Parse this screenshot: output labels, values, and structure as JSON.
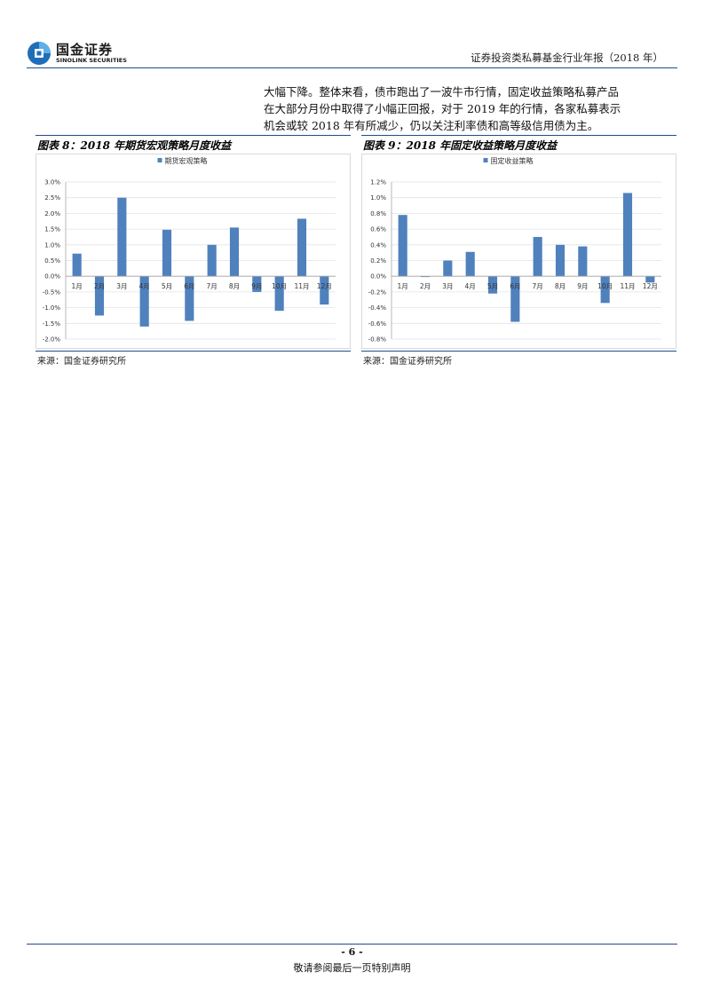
{
  "header": {
    "logo_cn": "国金证券",
    "logo_en": "SINOLINK SECURITIES",
    "report_title": "证券投资类私募基金行业年报（2018 年）"
  },
  "intro": {
    "lines": [
      "大幅下降。整体来看，债市跑出了一波牛市行情，固定收益策略私募产品",
      "在大部分月份中取得了小幅正回报，对于 2019 年的行情，各家私募表示",
      "机会或较 2018 年有所减少，仍以关注利率债和高等级信用债为主。"
    ]
  },
  "figures": [
    {
      "title": "图表 8：2018 年期货宏观策略月度收益",
      "source": "来源：国金证券研究所"
    },
    {
      "title": "图表 9：2018 年固定收益策略月度收益",
      "source": "来源：国金证券研究所"
    }
  ],
  "colors": {
    "bar": "#4f81bd",
    "rule": "#1f4e8c"
  },
  "chart_data": [
    {
      "type": "bar",
      "title": "",
      "legend": "期货宏观策略",
      "categories": [
        "1月",
        "2月",
        "3月",
        "4月",
        "5月",
        "6月",
        "7月",
        "8月",
        "9月",
        "10月",
        "11月",
        "12月"
      ],
      "values": [
        0.72,
        -1.25,
        2.5,
        -1.6,
        1.48,
        -1.42,
        1.0,
        1.55,
        -0.5,
        -1.1,
        1.83,
        -0.9
      ],
      "ylim": [
        -2.0,
        3.0
      ],
      "yticks": [
        3.0,
        2.5,
        2.0,
        1.5,
        1.0,
        0.5,
        0.0,
        -0.5,
        -1.0,
        -1.5,
        -2.0
      ],
      "ytick_labels": [
        "3.0%",
        "2.5%",
        "2.0%",
        "1.5%",
        "1.0%",
        "0.5%",
        "0.0%",
        "-0.5%",
        "-1.0%",
        "-1.5%",
        "-2.0%"
      ],
      "unit": "%"
    },
    {
      "type": "bar",
      "title": "",
      "legend": "固定收益策略",
      "categories": [
        "1月",
        "2月",
        "3月",
        "4月",
        "5月",
        "6月",
        "7月",
        "8月",
        "9月",
        "10月",
        "11月",
        "12月"
      ],
      "values": [
        0.78,
        -0.01,
        0.2,
        0.31,
        -0.22,
        -0.58,
        0.5,
        0.4,
        0.38,
        -0.34,
        1.06,
        -0.08
      ],
      "ylim": [
        -0.8,
        1.2
      ],
      "yticks": [
        1.2,
        1.0,
        0.8,
        0.6,
        0.4,
        0.2,
        0.0,
        -0.2,
        -0.4,
        -0.6,
        -0.8
      ],
      "ytick_labels": [
        "1.2%",
        "1.0%",
        "0.8%",
        "0.6%",
        "0.4%",
        "0.2%",
        "0.0%",
        "-0.2%",
        "-0.4%",
        "-0.6%",
        "-0.8%"
      ],
      "unit": "%"
    }
  ],
  "footer": {
    "page_number": "- 6 -",
    "note": "敬请参阅最后一页特别声明"
  }
}
